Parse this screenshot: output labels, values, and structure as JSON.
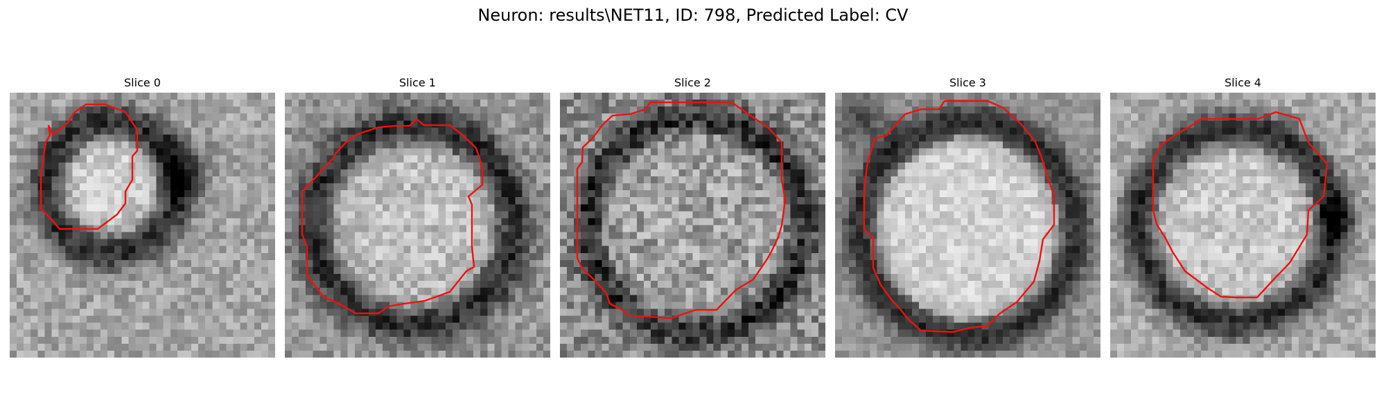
{
  "figure": {
    "title": "Neuron: results\\NET11, ID: 798, Predicted Label: CV",
    "contour_color": "#ee1111",
    "colormap": "grayscale",
    "panels": [
      {
        "label": "Slice 0",
        "image": "grayscale micrograph of a small round vesicle with a dark ring, red segmentation contour on the left/center",
        "contour": [
          [
            104,
            55
          ],
          [
            108,
            60
          ],
          [
            99,
            65
          ],
          [
            96,
            90
          ],
          [
            93,
            118
          ],
          [
            96,
            162
          ],
          [
            106,
            175
          ],
          [
            129,
            176
          ],
          [
            127,
            165
          ],
          [
            152,
            148
          ],
          [
            160,
            130
          ],
          [
            165,
            110
          ],
          [
            180,
            75
          ],
          [
            174,
            40
          ],
          [
            166,
            30
          ],
          [
            144,
            30
          ],
          [
            130,
            38
          ],
          [
            110,
            38
          ],
          [
            95,
            55
          ]
        ]
      },
      {
        "label": "Slice 1",
        "image": "grayscale micrograph of a round vesicle with a thick dark membrane, red segmentation contour",
        "contour": []
      },
      {
        "label": "Slice 2",
        "image": "grayscale noisy micrograph of a large round vesicle, red segmentation contour",
        "contour": []
      },
      {
        "label": "Slice 3",
        "image": "grayscale micrograph of a large bright round vesicle with dark outline, red segmentation contour",
        "contour": []
      },
      {
        "label": "Slice 4",
        "image": "grayscale micrograph of a round vesicle with a dark ring, red segmentation contour",
        "contour": []
      }
    ]
  }
}
